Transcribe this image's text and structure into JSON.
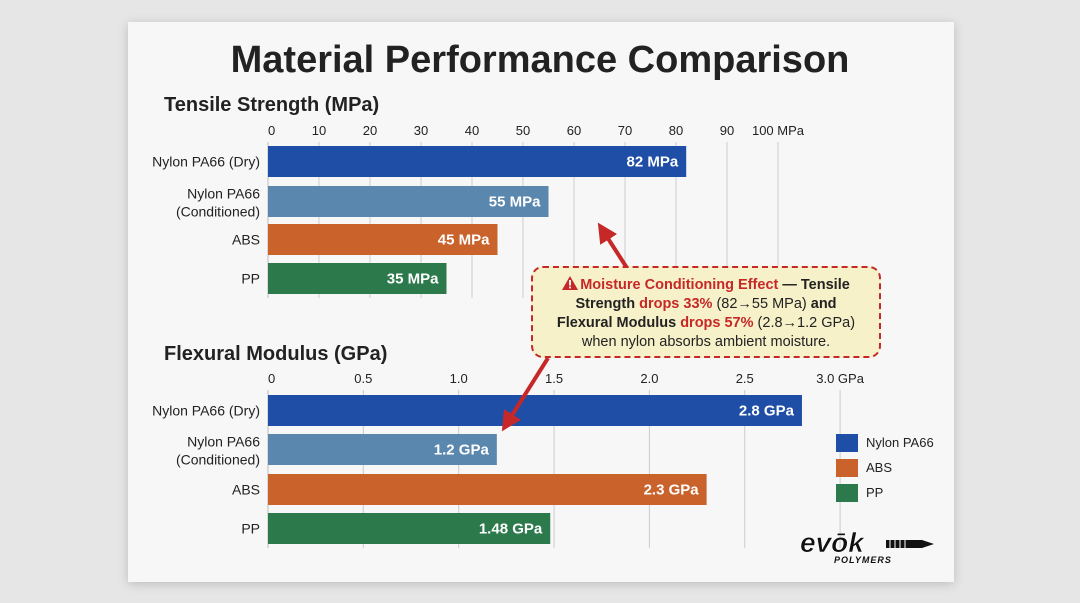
{
  "colors": {
    "nylon_dry": "#1f4ea7",
    "nylon_cond": "#5a87ad",
    "abs": "#c9622b",
    "pp": "#2c7a4b",
    "grid": "#cccccc",
    "text": "#222222",
    "accent_red": "#c62828"
  },
  "chart_data": [
    {
      "type": "bar",
      "orientation": "horizontal",
      "title": "Material Performance Comparison",
      "subtitle": "Tensile Strength (MPa)",
      "categories": [
        "Nylon PA66 (Dry)",
        "Nylon PA66\n(Conditioned)",
        "ABS",
        "PP"
      ],
      "values": [
        82,
        55,
        45,
        35
      ],
      "value_labels": [
        "82 MPa",
        "55 MPa",
        "45 MPa",
        "35 MPa"
      ],
      "ticks": [
        "0",
        "10",
        "20",
        "30",
        "40",
        "50",
        "60",
        "70",
        "80",
        "90",
        "100 MPa"
      ],
      "xlim": [
        0,
        100
      ],
      "grid": true
    },
    {
      "type": "bar",
      "orientation": "horizontal",
      "subtitle": "Flexural Modulus (GPa)",
      "categories": [
        "Nylon PA66 (Dry)",
        "Nylon PA66\n(Conditioned)",
        "ABS",
        "PP"
      ],
      "values": [
        2.8,
        1.2,
        2.3,
        1.48
      ],
      "value_labels": [
        "2.8 GPa",
        "1.2 GPa",
        "2.3 GPa",
        "1.48 GPa"
      ],
      "ticks": [
        "0",
        "0.5",
        "1.0",
        "1.5",
        "2.0",
        "2.5",
        "3.0 GPa"
      ],
      "xlim": [
        0,
        3.0
      ],
      "grid": true
    }
  ],
  "callout": {
    "title": "Moisture Conditioning Effect",
    "dash": " — Tensile",
    "line2_a": "Strength ",
    "line2_red": "drops 33%",
    "line2_b": " (82→55 MPa)",
    "line2_c": " and",
    "line3_a": "Flexural Modulus ",
    "line3_red": "drops 57%",
    "line3_b": " (2.8→1.2 GPa)",
    "line4": "when nylon absorbs ambient moisture."
  },
  "legend": {
    "items": [
      {
        "label": "Nylon PA66",
        "color": "#1f4ea7"
      },
      {
        "label": "ABS",
        "color": "#c9622b"
      },
      {
        "label": "PP",
        "color": "#2c7a4b"
      }
    ]
  },
  "logo": {
    "brand": "evōk",
    "sub": "POLYMERS"
  }
}
